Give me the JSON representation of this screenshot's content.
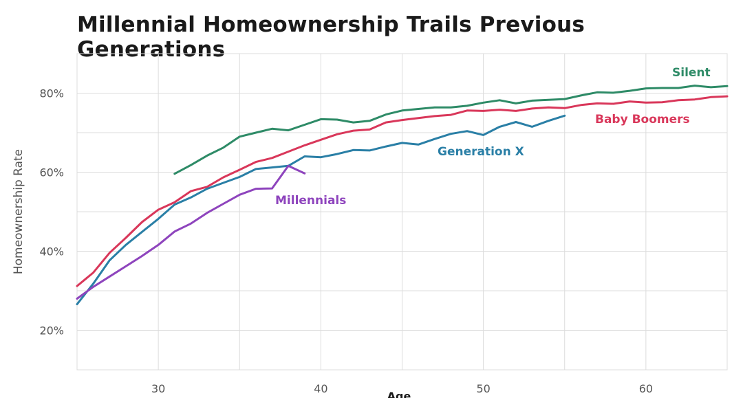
{
  "chart_data": {
    "type": "line",
    "title": "Millennial Homeownership Trails Previous Generations",
    "xlabel": "Age",
    "ylabel": "Homeownership Rate",
    "xlim": [
      25,
      65
    ],
    "ylim": [
      10,
      90
    ],
    "x_ticks": [
      30,
      40,
      50,
      60
    ],
    "x_tick_labels": [
      "30",
      "40",
      "50",
      "60"
    ],
    "y_ticks": [
      20,
      40,
      60,
      80
    ],
    "y_tick_labels": [
      "20%",
      "40%",
      "60%",
      "80%"
    ],
    "grid": true,
    "legend": "inline labels",
    "series": [
      {
        "name": "Silent",
        "color": "#2e8b67",
        "x": [
          31,
          32,
          33,
          34,
          35,
          36,
          37,
          38,
          39,
          40,
          41,
          42,
          43,
          44,
          45,
          46,
          47,
          48,
          49,
          50,
          51,
          52,
          53,
          54,
          55,
          56,
          57,
          58,
          59,
          60,
          61,
          62,
          63,
          64,
          65
        ],
        "values": [
          59.6,
          61.8,
          64.2,
          66.2,
          69.0,
          70.0,
          71.0,
          70.6,
          72.0,
          73.4,
          73.3,
          72.6,
          73.0,
          74.6,
          75.6,
          76.0,
          76.4,
          76.4,
          76.8,
          77.6,
          78.2,
          77.4,
          78.1,
          78.3,
          78.5,
          79.4,
          80.2,
          80.1,
          80.6,
          81.2,
          81.3,
          81.3,
          81.9,
          81.5,
          81.8
        ]
      },
      {
        "name": "Baby Boomers",
        "color": "#d9375a",
        "x": [
          25,
          26,
          27,
          28,
          29,
          30,
          31,
          32,
          33,
          34,
          35,
          36,
          37,
          38,
          39,
          40,
          41,
          42,
          43,
          44,
          45,
          46,
          47,
          48,
          49,
          50,
          51,
          52,
          53,
          54,
          55,
          56,
          57,
          58,
          59,
          60,
          61,
          62,
          63,
          64,
          65
        ],
        "values": [
          31.2,
          34.6,
          39.6,
          43.4,
          47.4,
          50.5,
          52.4,
          55.2,
          56.3,
          58.7,
          60.6,
          62.6,
          63.6,
          65.2,
          66.8,
          68.2,
          69.6,
          70.5,
          70.8,
          72.6,
          73.2,
          73.7,
          74.2,
          74.5,
          75.6,
          75.5,
          75.8,
          75.5,
          76.1,
          76.4,
          76.2,
          77.0,
          77.4,
          77.3,
          77.9,
          77.6,
          77.7,
          78.2,
          78.4,
          79.0,
          79.2
        ]
      },
      {
        "name": "Generation X",
        "color": "#2a7fa6",
        "x": [
          25,
          26,
          27,
          28,
          29,
          30,
          31,
          32,
          33,
          34,
          35,
          36,
          37,
          38,
          39,
          40,
          41,
          42,
          43,
          44,
          45,
          46,
          47,
          48,
          49,
          50,
          51,
          52,
          53,
          54,
          55
        ],
        "values": [
          26.6,
          31.8,
          37.7,
          41.6,
          44.9,
          48.2,
          51.8,
          53.6,
          55.8,
          57.3,
          58.8,
          60.8,
          61.2,
          61.6,
          64.0,
          63.8,
          64.6,
          65.6,
          65.5,
          66.5,
          67.4,
          67.0,
          68.4,
          69.7,
          70.4,
          69.4,
          71.5,
          72.7,
          71.5,
          73.0,
          74.3
        ]
      },
      {
        "name": "Millennials",
        "color": "#8e44bd",
        "x": [
          25,
          26,
          27,
          28,
          29,
          30,
          31,
          32,
          33,
          34,
          35,
          36,
          37,
          38,
          39
        ],
        "values": [
          28.0,
          31.0,
          33.6,
          36.2,
          38.8,
          41.6,
          45.0,
          47.0,
          49.7,
          52.0,
          54.3,
          55.8,
          55.9,
          61.6,
          59.7
        ]
      }
    ],
    "series_label_text": [
      "Silent",
      "Baby Boomers",
      "Generation X",
      "Millennials"
    ]
  }
}
